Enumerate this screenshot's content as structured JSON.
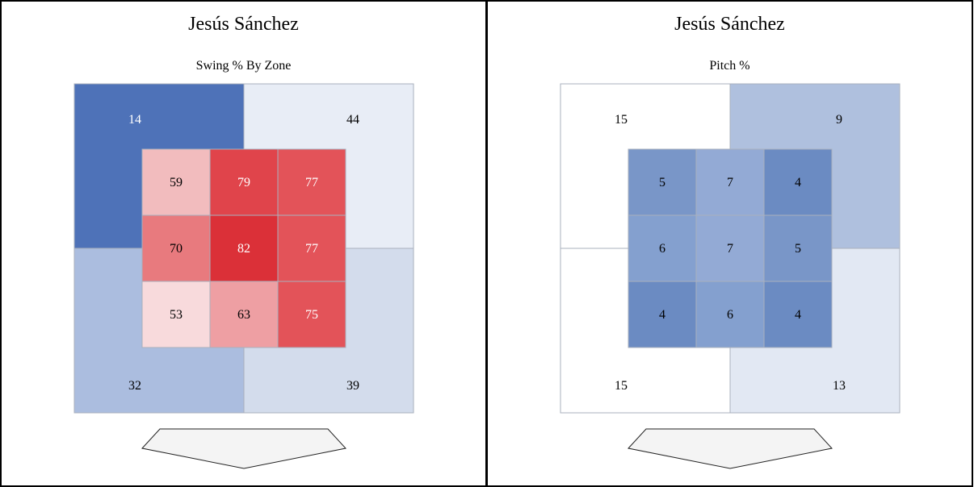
{
  "panels": [
    {
      "player": "Jesús Sánchez",
      "subtitle": "Swing % By Zone"
    },
    {
      "player": "Jesús Sánchez",
      "subtitle": "Pitch %"
    }
  ],
  "colors": {
    "cell_border": "#a9b0bd",
    "plate_fill": "#f4f4f4",
    "plate_stroke": "#222222"
  },
  "chart_data": [
    {
      "type": "heatmap",
      "title": "Swing % By Zone",
      "player": "Jesús Sánchez",
      "outer_zones": {
        "labels": [
          "top-left",
          "top-right",
          "bottom-left",
          "bottom-right"
        ],
        "values": [
          14,
          44,
          32,
          39
        ],
        "colors": [
          "#4e72b8",
          "#e8edf6",
          "#abbddf",
          "#d3dcec"
        ]
      },
      "inner_zones": {
        "values": [
          [
            59,
            79,
            77
          ],
          [
            70,
            82,
            77
          ],
          [
            53,
            63,
            75
          ]
        ],
        "colors": [
          [
            "#f2bcbe",
            "#e0444b",
            "#e35359"
          ],
          [
            "#e87a7e",
            "#db3038",
            "#e35359"
          ],
          [
            "#f8dadc",
            "#ee9fa3",
            "#e35359"
          ]
        ]
      }
    },
    {
      "type": "heatmap",
      "title": "Pitch %",
      "player": "Jesús Sánchez",
      "outer_zones": {
        "labels": [
          "top-left",
          "top-right",
          "bottom-left",
          "bottom-right"
        ],
        "values": [
          15,
          9,
          15,
          13
        ],
        "colors": [
          "#ffffff",
          "#afc0de",
          "#ffffff",
          "#e2e8f3"
        ]
      },
      "inner_zones": {
        "values": [
          [
            5,
            7,
            4
          ],
          [
            6,
            7,
            5
          ],
          [
            4,
            6,
            4
          ]
        ],
        "colors": [
          [
            "#7996c8",
            "#93aad5",
            "#6b8bc2"
          ],
          [
            "#84a0cf",
            "#93aad5",
            "#7996c8"
          ],
          [
            "#6b8bc2",
            "#84a0cf",
            "#6b8bc2"
          ]
        ]
      }
    }
  ]
}
